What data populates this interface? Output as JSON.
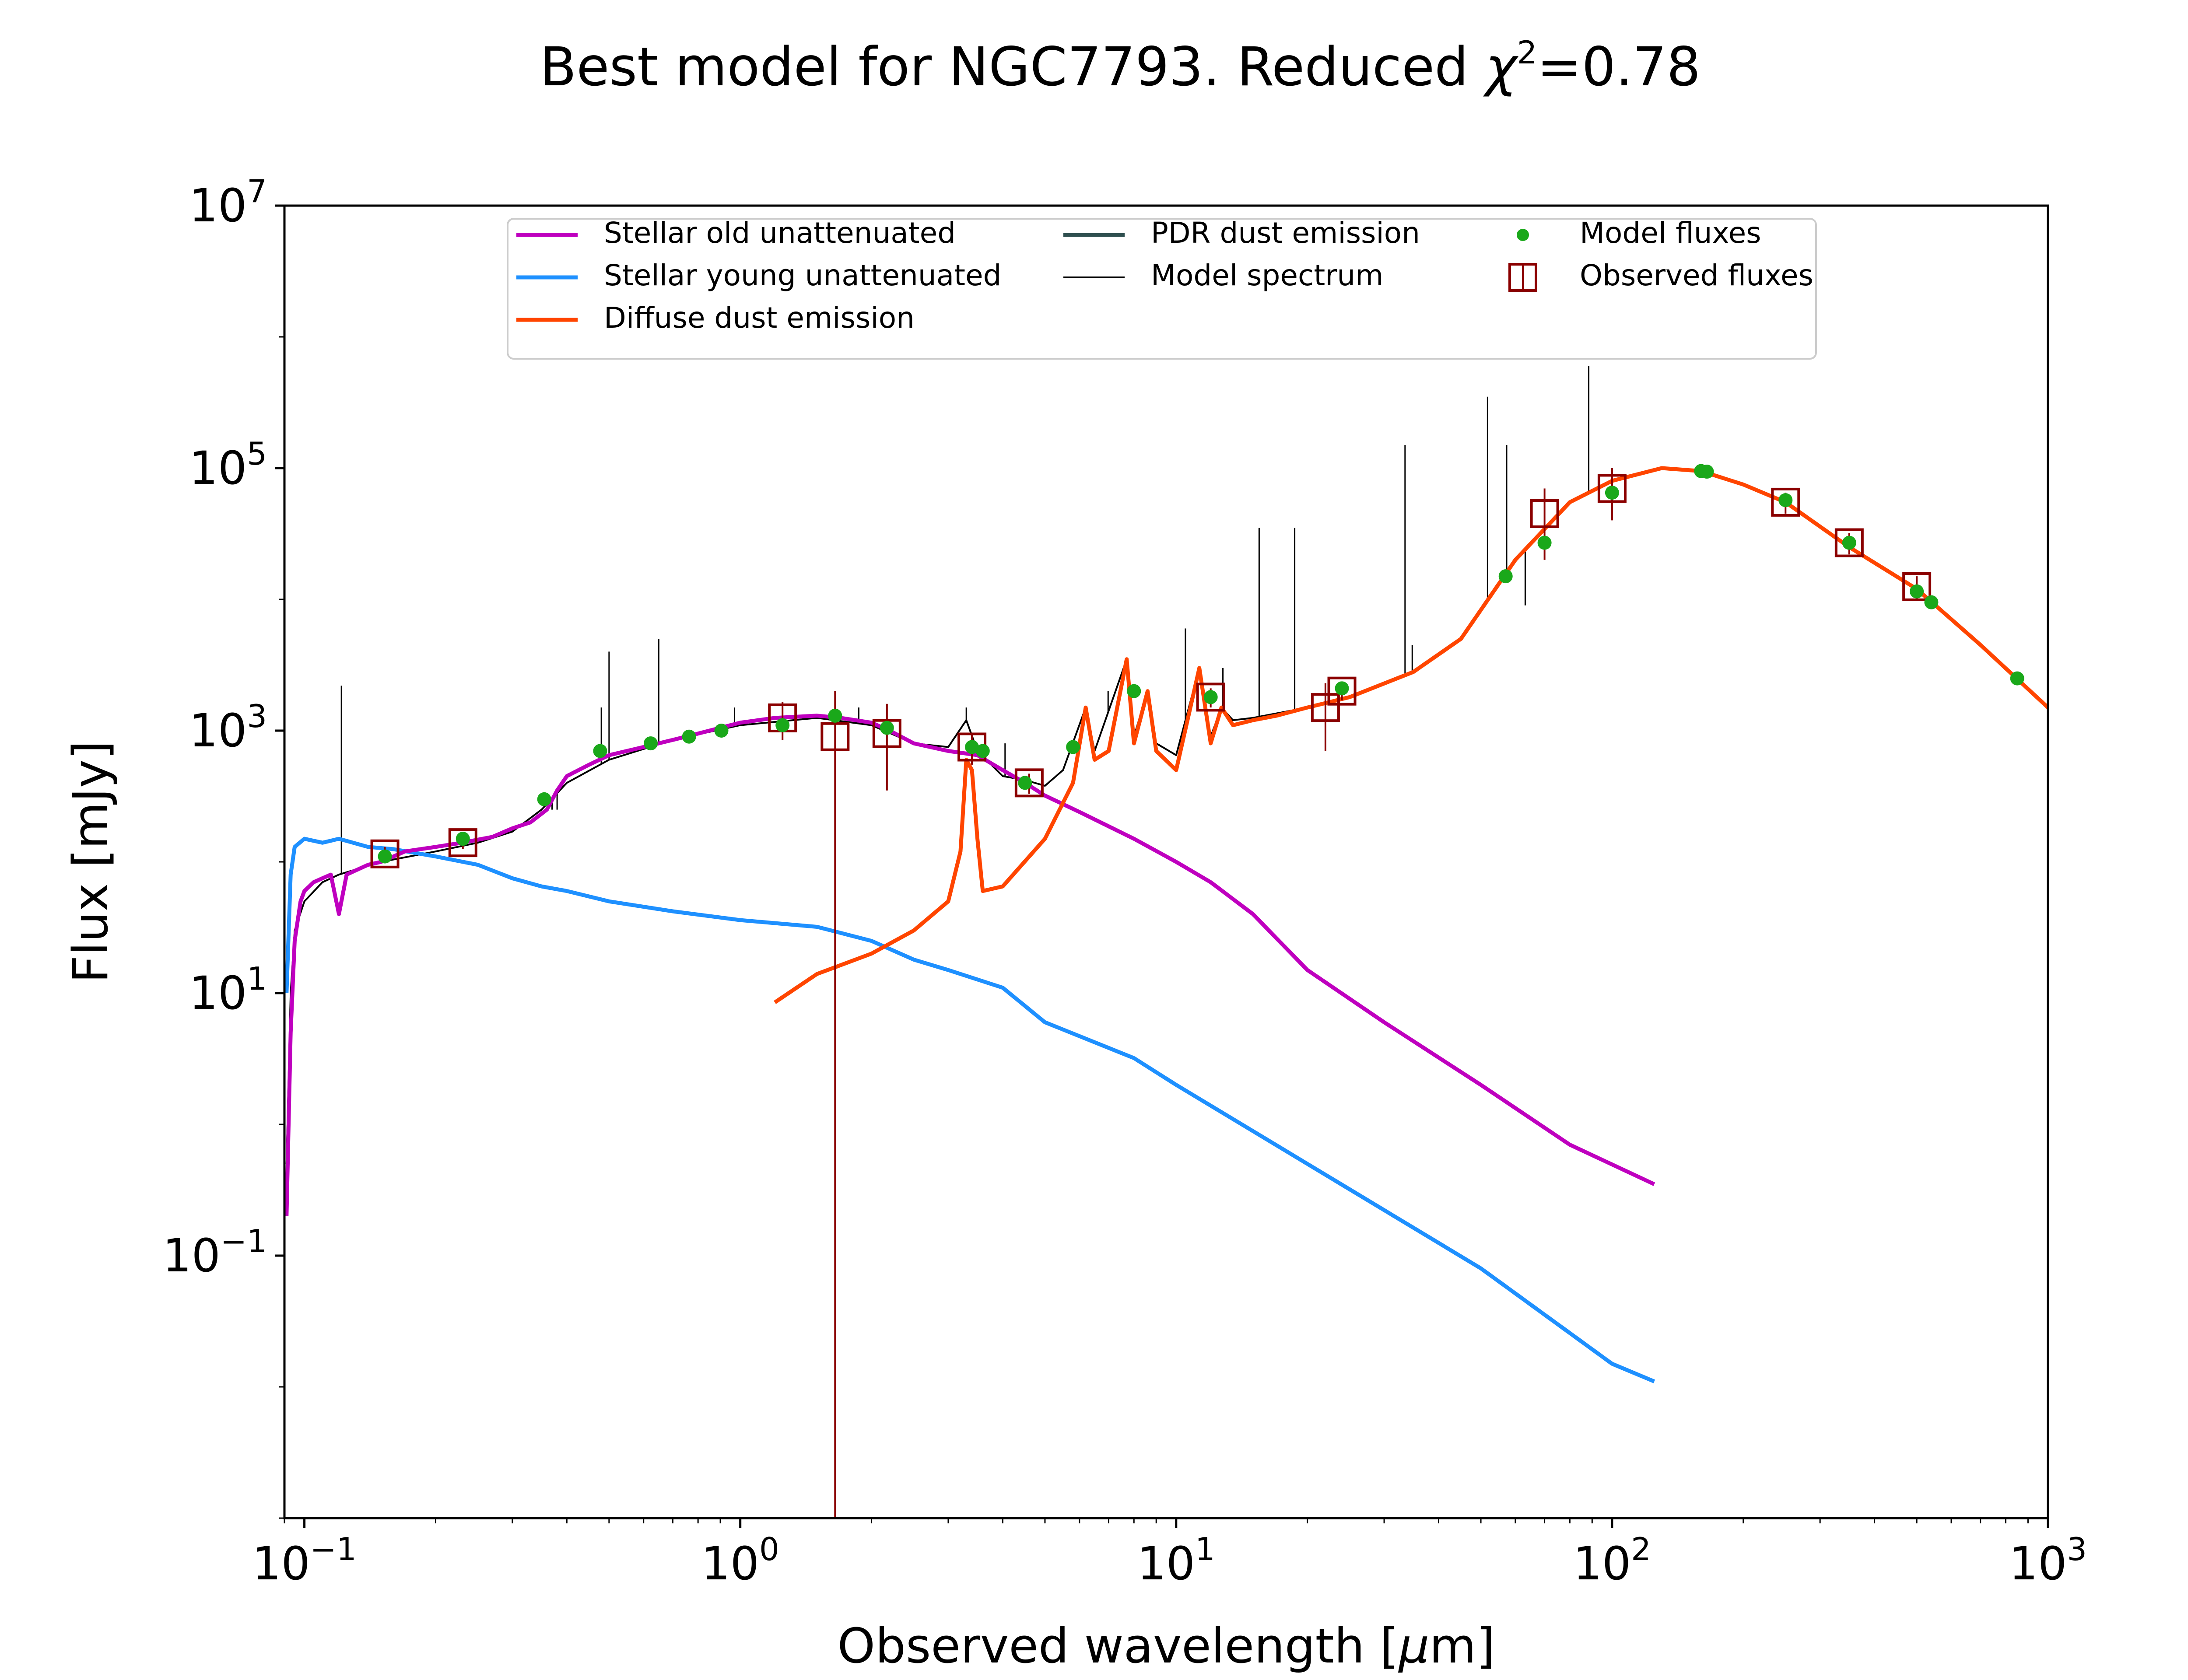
{
  "chart_data": {
    "type": "line",
    "title_prefix": "Best model for NGC7793. Reduced ",
    "title_chi": "χ",
    "title_sup": "2",
    "title_suffix": "=0.78",
    "xlabel_prefix": "Observed wavelength [",
    "xlabel_mu": "μ",
    "xlabel_suffix": "m]",
    "ylabel": "Flux [mJy]",
    "x_scale": "log",
    "y_scale": "log",
    "xlim": [
      0.09,
      1000
    ],
    "ylim": [
      0.001,
      10000000
    ],
    "x_ticks": [
      {
        "value": 0.1,
        "base": "10",
        "exp": "−1"
      },
      {
        "value": 1,
        "base": "10",
        "exp": "0"
      },
      {
        "value": 10,
        "base": "10",
        "exp": "1"
      },
      {
        "value": 100,
        "base": "10",
        "exp": "2"
      },
      {
        "value": 1000,
        "base": "10",
        "exp": "3"
      }
    ],
    "y_ticks": [
      {
        "value": 0.1,
        "base": "10",
        "exp": "−1"
      },
      {
        "value": 10,
        "base": "10",
        "exp": "1"
      },
      {
        "value": 1000,
        "base": "10",
        "exp": "3"
      },
      {
        "value": 100000,
        "base": "10",
        "exp": "5"
      },
      {
        "value": 10000000,
        "base": "10",
        "exp": "7"
      }
    ],
    "grid": false,
    "legend_position": "top-center",
    "legend": [
      {
        "label": "Stellar old unattenuated",
        "marker": "line",
        "color": "#bf00bf"
      },
      {
        "label": "Stellar young unattenuated",
        "marker": "line",
        "color": "#1e90ff"
      },
      {
        "label": "Diffuse dust emission",
        "marker": "line",
        "color": "#ff4500"
      },
      {
        "label": "PDR dust emission",
        "marker": "line",
        "color": "#2f4f4f"
      },
      {
        "label": "Model spectrum",
        "marker": "thinline",
        "color": "#000000"
      },
      {
        "label": "Model fluxes",
        "marker": "dot",
        "color": "#1aa81a"
      },
      {
        "label": "Observed fluxes",
        "marker": "square",
        "color": "#8b0000"
      }
    ],
    "series": [
      {
        "name": "Stellar old unattenuated",
        "color": "#bf00bf",
        "points": [
          [
            0.091,
            0.2
          ],
          [
            0.093,
            5
          ],
          [
            0.095,
            25
          ],
          [
            0.098,
            50
          ],
          [
            0.1,
            60
          ],
          [
            0.105,
            70
          ],
          [
            0.11,
            75
          ],
          [
            0.115,
            80
          ],
          [
            0.12,
            40
          ],
          [
            0.125,
            80
          ],
          [
            0.13,
            85
          ],
          [
            0.14,
            95
          ],
          [
            0.15,
            100
          ],
          [
            0.17,
            120
          ],
          [
            0.2,
            130
          ],
          [
            0.23,
            140
          ],
          [
            0.27,
            155
          ],
          [
            0.3,
            180
          ],
          [
            0.33,
            200
          ],
          [
            0.36,
            250
          ],
          [
            0.38,
            350
          ],
          [
            0.4,
            450
          ],
          [
            0.45,
            550
          ],
          [
            0.5,
            650
          ],
          [
            0.6,
            750
          ],
          [
            0.7,
            850
          ],
          [
            0.8,
            950
          ],
          [
            0.9,
            1050
          ],
          [
            1.0,
            1150
          ],
          [
            1.2,
            1250
          ],
          [
            1.5,
            1300
          ],
          [
            1.7,
            1250
          ],
          [
            2.0,
            1150
          ],
          [
            2.2,
            1000
          ],
          [
            2.5,
            800
          ],
          [
            3.0,
            700
          ],
          [
            3.5,
            650
          ],
          [
            4.0,
            500
          ],
          [
            4.5,
            400
          ],
          [
            5.0,
            320
          ],
          [
            6.0,
            240
          ],
          [
            8.0,
            150
          ],
          [
            10.0,
            100
          ],
          [
            12.0,
            70
          ],
          [
            15.0,
            40
          ],
          [
            20.0,
            15
          ],
          [
            30.0,
            6
          ],
          [
            50.0,
            2
          ],
          [
            80.0,
            0.7
          ],
          [
            125.0,
            0.35
          ]
        ]
      },
      {
        "name": "Stellar young unattenuated",
        "color": "#1e90ff",
        "points": [
          [
            0.091,
            10
          ],
          [
            0.093,
            80
          ],
          [
            0.095,
            130
          ],
          [
            0.1,
            150
          ],
          [
            0.11,
            140
          ],
          [
            0.12,
            150
          ],
          [
            0.14,
            130
          ],
          [
            0.16,
            125
          ],
          [
            0.2,
            110
          ],
          [
            0.25,
            95
          ],
          [
            0.3,
            75
          ],
          [
            0.35,
            65
          ],
          [
            0.4,
            60
          ],
          [
            0.5,
            50
          ],
          [
            0.7,
            42
          ],
          [
            1.0,
            36
          ],
          [
            1.5,
            32
          ],
          [
            2.0,
            25
          ],
          [
            2.5,
            18
          ],
          [
            3.0,
            15
          ],
          [
            4.0,
            11
          ],
          [
            5.0,
            6
          ],
          [
            8.0,
            3.2
          ],
          [
            10.0,
            2.0
          ],
          [
            20.0,
            0.5
          ],
          [
            50.0,
            0.08
          ],
          [
            100.0,
            0.015
          ],
          [
            125.0,
            0.011
          ]
        ]
      },
      {
        "name": "Diffuse dust emission",
        "color": "#ff4500",
        "points": [
          [
            1.2,
            8.5
          ],
          [
            1.5,
            14
          ],
          [
            2.0,
            20
          ],
          [
            2.5,
            30
          ],
          [
            3.0,
            50
          ],
          [
            3.2,
            120
          ],
          [
            3.3,
            600
          ],
          [
            3.4,
            500
          ],
          [
            3.5,
            150
          ],
          [
            3.6,
            60
          ],
          [
            4.0,
            65
          ],
          [
            5.0,
            150
          ],
          [
            5.8,
            400
          ],
          [
            6.2,
            1500
          ],
          [
            6.5,
            600
          ],
          [
            7.0,
            700
          ],
          [
            7.7,
            3500
          ],
          [
            8.0,
            800
          ],
          [
            8.6,
            2000
          ],
          [
            9.0,
            700
          ],
          [
            10.0,
            500
          ],
          [
            11.3,
            3000
          ],
          [
            12.0,
            800
          ],
          [
            12.7,
            1500
          ],
          [
            13.5,
            1100
          ],
          [
            15.0,
            1200
          ],
          [
            17.0,
            1300
          ],
          [
            20.0,
            1500
          ],
          [
            25.0,
            1800
          ],
          [
            35.0,
            2800
          ],
          [
            45.0,
            5000
          ],
          [
            60.0,
            20000
          ],
          [
            80.0,
            55000
          ],
          [
            100.0,
            80000
          ],
          [
            130.0,
            100000
          ],
          [
            160.0,
            95000
          ],
          [
            200.0,
            75000
          ],
          [
            250.0,
            55000
          ],
          [
            350.0,
            25000
          ],
          [
            500.0,
            12000
          ],
          [
            700.0,
            4500
          ],
          [
            1000.0,
            1500
          ]
        ]
      },
      {
        "name": "Model spectrum",
        "color": "#000000",
        "points": [
          [
            0.091,
            0.5
          ],
          [
            0.093,
            10
          ],
          [
            0.095,
            30
          ],
          [
            0.1,
            50
          ],
          [
            0.11,
            70
          ],
          [
            0.12,
            80
          ],
          [
            0.15,
            100
          ],
          [
            0.2,
            120
          ],
          [
            0.25,
            140
          ],
          [
            0.3,
            170
          ],
          [
            0.35,
            250
          ],
          [
            0.4,
            400
          ],
          [
            0.5,
            600
          ],
          [
            0.7,
            850
          ],
          [
            1.0,
            1100
          ],
          [
            1.5,
            1250
          ],
          [
            2.0,
            1100
          ],
          [
            2.5,
            800
          ],
          [
            3.0,
            750
          ],
          [
            3.3,
            1200
          ],
          [
            3.5,
            700
          ],
          [
            4.0,
            450
          ],
          [
            4.5,
            420
          ],
          [
            5.0,
            380
          ],
          [
            5.5,
            500
          ],
          [
            6.2,
            1500
          ],
          [
            6.5,
            700
          ],
          [
            7.7,
            3500
          ],
          [
            8.0,
            900
          ],
          [
            8.6,
            2000
          ],
          [
            9.0,
            800
          ],
          [
            10.0,
            650
          ],
          [
            11.3,
            3000
          ],
          [
            12.0,
            900
          ],
          [
            12.7,
            1500
          ],
          [
            13.5,
            1200
          ],
          [
            15.0,
            1250
          ],
          [
            20.0,
            1500
          ],
          [
            25.0,
            1800
          ],
          [
            35.0,
            2800
          ],
          [
            45.0,
            5000
          ],
          [
            60.0,
            20000
          ],
          [
            80.0,
            55000
          ],
          [
            100.0,
            80000
          ],
          [
            130.0,
            100000
          ],
          [
            160.0,
            95000
          ],
          [
            200.0,
            75000
          ],
          [
            250.0,
            55000
          ],
          [
            350.0,
            25000
          ],
          [
            500.0,
            12000
          ],
          [
            700.0,
            4500
          ],
          [
            1000.0,
            1500
          ]
        ]
      }
    ],
    "emission_lines": [
      [
        0.1216,
        2200
      ],
      [
        0.37,
        250
      ],
      [
        0.38,
        250
      ],
      [
        0.48,
        1500
      ],
      [
        0.5,
        4000
      ],
      [
        0.65,
        5000
      ],
      [
        0.97,
        1500
      ],
      [
        1.87,
        1500
      ],
      [
        3.3,
        1500
      ],
      [
        4.05,
        800
      ],
      [
        6.98,
        2000
      ],
      [
        10.5,
        6000
      ],
      [
        12.8,
        3000
      ],
      [
        15.5,
        35000
      ],
      [
        18.7,
        35000
      ],
      [
        33.5,
        150000
      ],
      [
        34.8,
        4500
      ],
      [
        51.8,
        350000
      ],
      [
        57.3,
        150000
      ],
      [
        63.2,
        9000
      ],
      [
        88.4,
        600000
      ]
    ],
    "model_fluxes": [
      [
        0.153,
        110
      ],
      [
        0.231,
        150
      ],
      [
        0.355,
        300
      ],
      [
        0.477,
        700
      ],
      [
        0.623,
        800
      ],
      [
        0.763,
        900
      ],
      [
        0.905,
        1000
      ],
      [
        1.25,
        1100
      ],
      [
        1.65,
        1300
      ],
      [
        2.17,
        1050
      ],
      [
        3.4,
        750
      ],
      [
        3.6,
        700
      ],
      [
        4.5,
        400
      ],
      [
        5.8,
        750
      ],
      [
        8.0,
        2000
      ],
      [
        12.0,
        1800
      ],
      [
        24.0,
        2100
      ],
      [
        57.0,
        15000
      ],
      [
        70.0,
        27000
      ],
      [
        100.0,
        65000
      ],
      [
        160.0,
        95000
      ],
      [
        165.0,
        94000
      ],
      [
        250.0,
        57000
      ],
      [
        350.0,
        27000
      ],
      [
        500.0,
        11500
      ],
      [
        540.0,
        9500
      ],
      [
        850.0,
        2500
      ]
    ],
    "observed_fluxes": [
      {
        "x": 0.153,
        "y": 115,
        "ylo": 100,
        "yhi": 130
      },
      {
        "x": 0.231,
        "y": 140,
        "ylo": 125,
        "yhi": 155
      },
      {
        "x": 1.25,
        "y": 1250,
        "ylo": 850,
        "yhi": 1650
      },
      {
        "x": 1.65,
        "y": 900,
        "ylo": 0.001,
        "yhi": 2000
      },
      {
        "x": 2.17,
        "y": 950,
        "ylo": 350,
        "yhi": 1600
      },
      {
        "x": 3.4,
        "y": 750,
        "ylo": 550,
        "yhi": 950
      },
      {
        "x": 4.6,
        "y": 400,
        "ylo": 330,
        "yhi": 470
      },
      {
        "x": 12.0,
        "y": 1800,
        "ylo": 1500,
        "yhi": 2100
      },
      {
        "x": 22.0,
        "y": 1500,
        "ylo": 700,
        "yhi": 2300
      },
      {
        "x": 24.0,
        "y": 2000,
        "ylo": 1700,
        "yhi": 2300
      },
      {
        "x": 70.0,
        "y": 45000,
        "ylo": 20000,
        "yhi": 70000
      },
      {
        "x": 100.0,
        "y": 70000,
        "ylo": 40000,
        "yhi": 100000
      },
      {
        "x": 250.0,
        "y": 55000,
        "ylo": 45000,
        "yhi": 65000
      },
      {
        "x": 350.0,
        "y": 27000,
        "ylo": 22000,
        "yhi": 32000
      },
      {
        "x": 500.0,
        "y": 12500,
        "ylo": 10000,
        "yhi": 15000
      }
    ]
  }
}
